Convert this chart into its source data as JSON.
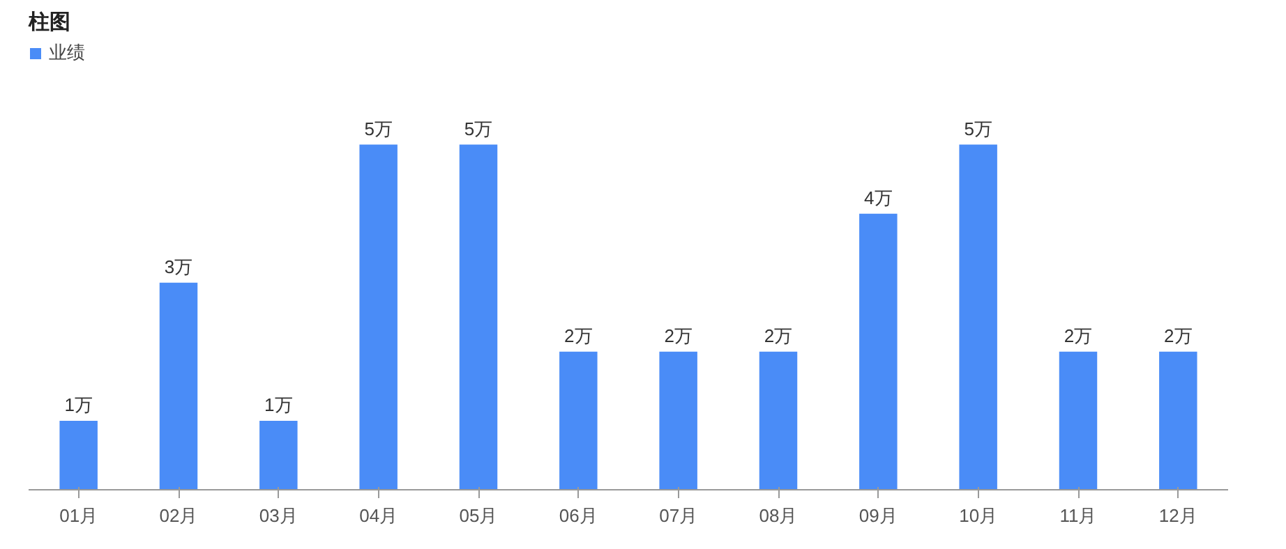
{
  "chart_data": {
    "type": "bar",
    "title": "柱图",
    "categories": [
      "01月",
      "02月",
      "03月",
      "04月",
      "05月",
      "06月",
      "07月",
      "08月",
      "09月",
      "10月",
      "11月",
      "12月"
    ],
    "series": [
      {
        "name": "业绩",
        "color": "#4a8cf7",
        "values": [
          1,
          3,
          1,
          5,
          5,
          2,
          2,
          2,
          4,
          5,
          2,
          2
        ],
        "value_labels": [
          "1万",
          "3万",
          "1万",
          "5万",
          "5万",
          "2万",
          "2万",
          "2万",
          "4万",
          "5万",
          "2万",
          "2万"
        ]
      }
    ],
    "legend": "top left",
    "grid": false
  }
}
